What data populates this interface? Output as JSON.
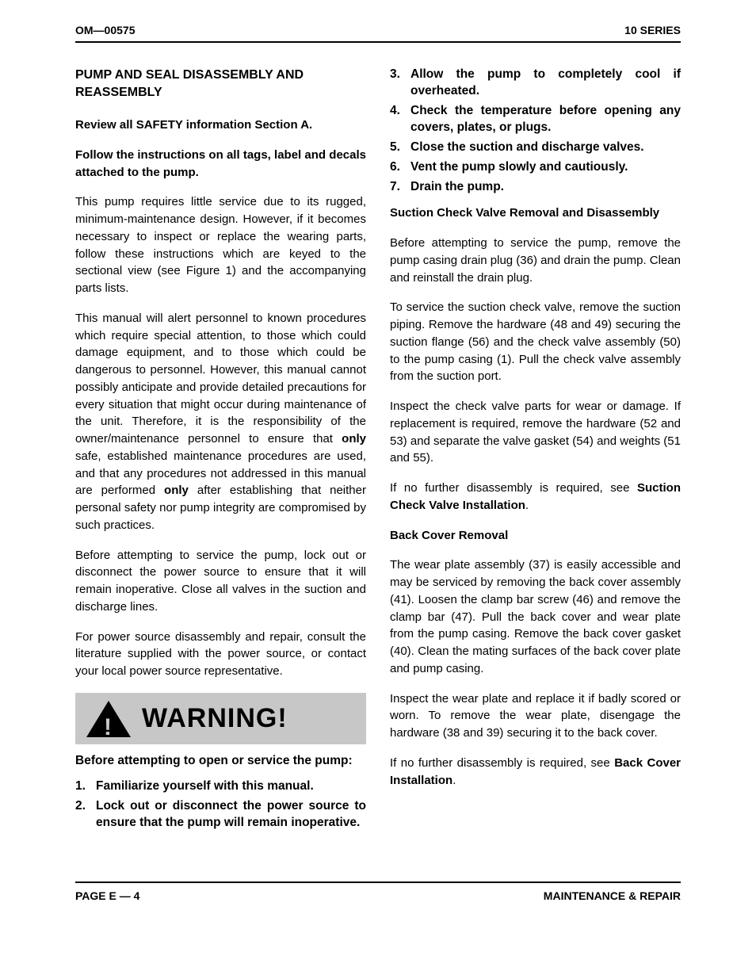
{
  "header": {
    "left": "OM—00575",
    "right": "10 SERIES"
  },
  "left_col": {
    "title": "PUMP AND SEAL DISASSEMBLY AND REASSEMBLY",
    "review": "Review all SAFETY information Section A.",
    "follow": "Follow the instructions on all tags, label and decals attached to the pump.",
    "p1": "This pump requires little service due to its rugged, minimum-maintenance design. However, if it becomes necessary to inspect or replace the wearing parts, follow these instructions which are keyed to the sectional view (see Figure 1) and the accompanying parts lists.",
    "p2a": "This manual will alert personnel to known procedures which require special attention, to those which could damage equipment, and to those which could be dangerous to personnel. However, this manual cannot possibly anticipate and provide detailed precautions for every situation that might occur during maintenance of the unit. Therefore, it is the responsibility of the owner/maintenance personnel to ensure that ",
    "p2_only1": "only",
    "p2b": " safe, established maintenance procedures are used, and that any procedures not addressed in this manual are performed ",
    "p2_only2": "only",
    "p2c": " after establishing that neither personal safety nor pump integrity are compromised by such practices.",
    "p3": "Before attempting to service the pump, lock out or disconnect the power source to ensure that it will remain inoperative. Close all valves in the suction and discharge lines.",
    "p4": "For power source disassembly and repair, consult the literature supplied with the power source, or contact your local power source representative.",
    "warning_label": "WARNING!",
    "warn_intro": "Before attempting to open or service the pump:",
    "warn_items_a": [
      "Familiarize yourself with this manual.",
      "Lock out or disconnect the power source to ensure that the pump will remain inoperative."
    ]
  },
  "right_col": {
    "warn_items_b": [
      "Allow the pump to completely cool if overheated.",
      "Check the temperature before opening any covers, plates, or plugs.",
      "Close the suction and discharge valves.",
      "Vent the pump slowly and cautiously.",
      "Drain the pump."
    ],
    "sub1_title": "Suction Check Valve Removal and Disassembly",
    "sub1_p1": "Before attempting to service the pump, remove the pump casing drain plug (36) and drain the pump. Clean and reinstall the drain plug.",
    "sub1_p2": "To service the suction check valve, remove the suction piping. Remove the hardware (48 and 49) securing the suction flange (56) and the check valve assembly (50) to the pump casing (1). Pull the check valve assembly from the suction port.",
    "sub1_p3": "Inspect the check valve parts for wear or damage. If replacement is required, remove the hardware (52 and 53) and separate the valve gasket (54) and weights (51 and 55).",
    "sub1_p4a": "If no further disassembly is required, see ",
    "sub1_p4b": "Suction Check Valve Installation",
    "sub1_p4c": ".",
    "sub2_title": "Back Cover Removal",
    "sub2_p1": "The wear plate assembly (37) is easily accessible and may be serviced by removing the back cover assembly (41). Loosen the clamp bar screw (46) and remove the clamp bar (47). Pull the back cover and wear plate from the pump casing. Remove the back cover gasket (40). Clean the mating surfaces of the back cover plate and pump casing.",
    "sub2_p2": "Inspect the wear plate and replace it if badly scored or worn. To remove the wear plate, disengage the hardware (38 and 39) securing it to the back cover.",
    "sub2_p3a": "If no further disassembly is required, see ",
    "sub2_p3b": "Back Cover Installation",
    "sub2_p3c": "."
  },
  "footer": {
    "left": "PAGE E — 4",
    "right": "MAINTENANCE & REPAIR"
  },
  "style": {
    "bg": "#ffffff",
    "text": "#000000",
    "warn_bg": "#c7c7c7",
    "rule": "#000000"
  }
}
